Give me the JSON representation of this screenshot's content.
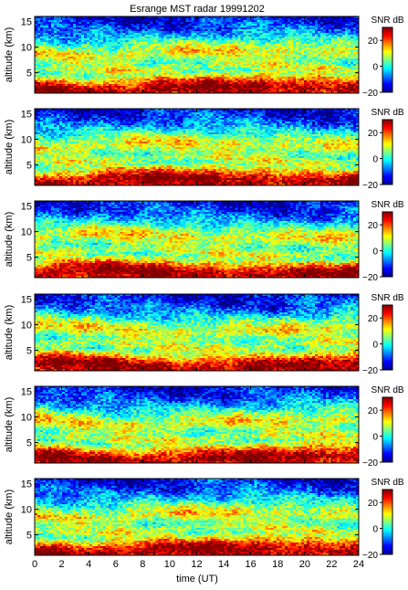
{
  "chart_data": {
    "type": "heatmap",
    "title": "Esrange MST radar 19991202",
    "xlabel": "time (UT)",
    "ylabel": "altitude (km)",
    "colorbar_label": "SNR dB",
    "xlim": [
      0,
      24
    ],
    "ylim": [
      1,
      16
    ],
    "clim": [
      -20,
      30
    ],
    "x_ticks": [
      0,
      2,
      4,
      6,
      8,
      10,
      12,
      14,
      16,
      18,
      20,
      22,
      24
    ],
    "x_tick_labels": [
      "0",
      "2",
      "4",
      "6",
      "8",
      "10",
      "12",
      "14",
      "16",
      "18",
      "20",
      "22",
      "24"
    ],
    "y_ticks": [
      5,
      10,
      15
    ],
    "y_tick_labels": [
      "5",
      "10",
      "15"
    ],
    "colorbar_ticks": [
      -20,
      0,
      20
    ],
    "colorbar_tick_labels": [
      "−20",
      "0",
      "20"
    ],
    "colormap": "jet",
    "panel_count": 6,
    "altitude_profile_snr_db": {
      "altitude_km": [
        1,
        2,
        3,
        4,
        5,
        6,
        7,
        8,
        9,
        10,
        11,
        12,
        13,
        14,
        15,
        16
      ],
      "snr_db": [
        26,
        30,
        24,
        14,
        5,
        9,
        4,
        7,
        12,
        8,
        2,
        -3,
        -8,
        -11,
        -13,
        -15
      ]
    }
  }
}
